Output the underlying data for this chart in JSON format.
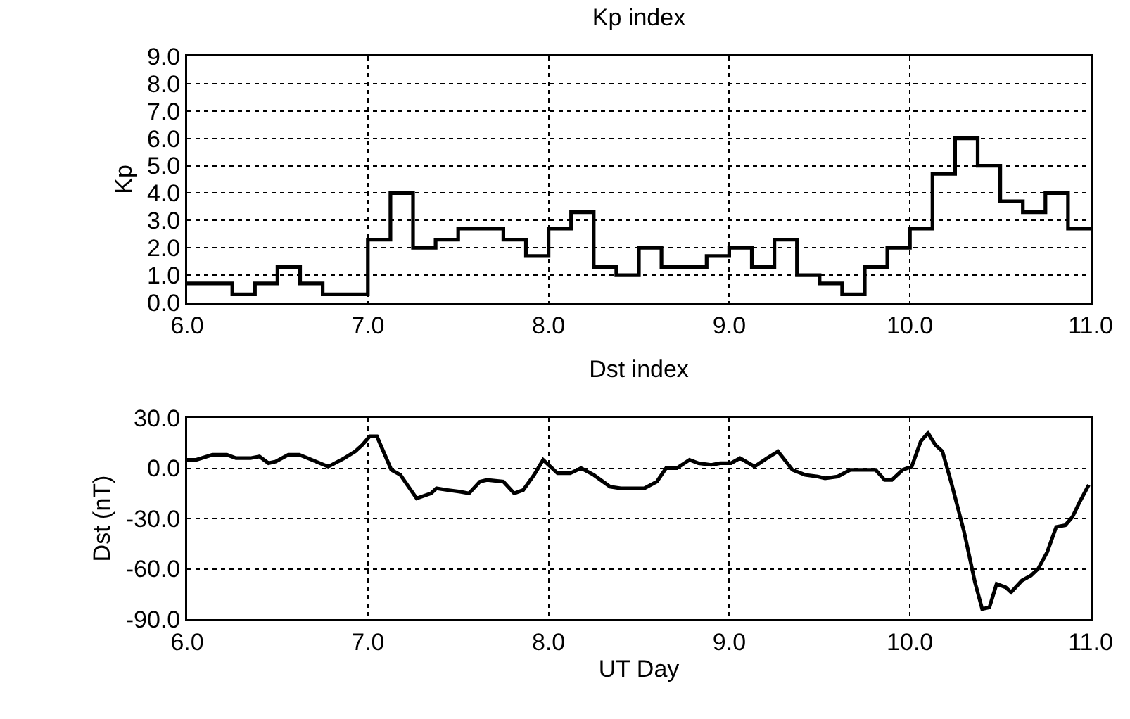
{
  "chart_data": [
    {
      "type": "step",
      "title": "Kp index",
      "ylabel": "Kp",
      "xlim": [
        6.0,
        11.0
      ],
      "ylim": [
        0,
        9
      ],
      "xticks": [
        {
          "value": 6,
          "label": "6.0"
        },
        {
          "value": 7,
          "label": "7.0"
        },
        {
          "value": 8,
          "label": "8.0"
        },
        {
          "value": 9,
          "label": "9.0"
        },
        {
          "value": 10,
          "label": "10.0"
        },
        {
          "value": 11,
          "label": "11.0"
        }
      ],
      "yticks": [
        {
          "value": 0,
          "label": "0.0"
        },
        {
          "value": 1,
          "label": "1.0"
        },
        {
          "value": 2,
          "label": "2.0"
        },
        {
          "value": 3,
          "label": "3.0"
        },
        {
          "value": 4,
          "label": "4.0"
        },
        {
          "value": 5,
          "label": "5.0"
        },
        {
          "value": 6,
          "label": "6.0"
        },
        {
          "value": 7,
          "label": "7.0"
        },
        {
          "value": 8,
          "label": "8.0"
        },
        {
          "value": 9,
          "label": "9.0"
        }
      ],
      "grid": true,
      "x": [
        6.0,
        6.125,
        6.25,
        6.375,
        6.5,
        6.625,
        6.75,
        6.875,
        7.0,
        7.125,
        7.25,
        7.375,
        7.5,
        7.625,
        7.75,
        7.875,
        8.0,
        8.125,
        8.25,
        8.375,
        8.5,
        8.625,
        8.75,
        8.875,
        9.0,
        9.125,
        9.25,
        9.375,
        9.5,
        9.625,
        9.75,
        9.875,
        10.0,
        10.125,
        10.25,
        10.375,
        10.5,
        10.625,
        10.75,
        10.875,
        11.0
      ],
      "series": [
        {
          "color": "#000000",
          "values": [
            0.7,
            0.7,
            0.3,
            0.7,
            1.3,
            0.7,
            0.3,
            0.3,
            2.3,
            4.0,
            2.0,
            2.3,
            2.7,
            2.7,
            2.3,
            1.7,
            2.7,
            3.3,
            1.3,
            1.0,
            2.0,
            1.3,
            1.3,
            1.7,
            2.0,
            1.3,
            2.3,
            1.0,
            0.7,
            0.3,
            1.3,
            2.0,
            2.7,
            4.7,
            6.0,
            5.0,
            3.7,
            3.3,
            4.0,
            2.7,
            2.7
          ]
        }
      ]
    },
    {
      "type": "line",
      "title": "Dst index",
      "xlabel": "UT Day",
      "ylabel": "Dst (nT)",
      "xlim": [
        6.0,
        11.0
      ],
      "ylim": [
        -90,
        30
      ],
      "xticks": [
        {
          "value": 6,
          "label": "6.0"
        },
        {
          "value": 7,
          "label": "7.0"
        },
        {
          "value": 8,
          "label": "8.0"
        },
        {
          "value": 9,
          "label": "9.0"
        },
        {
          "value": 10,
          "label": "10.0"
        },
        {
          "value": 11,
          "label": "11.0"
        }
      ],
      "yticks": [
        {
          "value": -90,
          "label": "-90.0"
        },
        {
          "value": -60,
          "label": "-60.0"
        },
        {
          "value": -30,
          "label": "-30.0"
        },
        {
          "value": 0,
          "label": "0.0"
        },
        {
          "value": 30,
          "label": "30.0"
        }
      ],
      "grid": true,
      "x": [
        6.0,
        6.05,
        6.14,
        6.22,
        6.27,
        6.35,
        6.4,
        6.45,
        6.49,
        6.56,
        6.62,
        6.69,
        6.78,
        6.8,
        6.87,
        6.93,
        6.97,
        7.01,
        7.05,
        7.13,
        7.18,
        7.27,
        7.35,
        7.38,
        7.44,
        7.51,
        7.56,
        7.62,
        7.66,
        7.75,
        7.81,
        7.86,
        7.92,
        7.97,
        8.05,
        8.12,
        8.18,
        8.25,
        8.34,
        8.4,
        8.53,
        8.6,
        8.65,
        8.71,
        8.78,
        8.83,
        8.9,
        8.95,
        9.01,
        9.06,
        9.14,
        9.21,
        9.27,
        9.35,
        9.42,
        9.49,
        9.53,
        9.6,
        9.67,
        9.72,
        9.81,
        9.86,
        9.9,
        9.96,
        10.01,
        10.06,
        10.1,
        10.14,
        10.18,
        10.23,
        10.3,
        10.36,
        10.4,
        10.44,
        10.48,
        10.53,
        10.56,
        10.62,
        10.67,
        10.71,
        10.76,
        10.81,
        10.86,
        10.9,
        10.94,
        10.99
      ],
      "series": [
        {
          "color": "#000000",
          "values": [
            5,
            5,
            8,
            8,
            6,
            6,
            7,
            3,
            4,
            8,
            8,
            5,
            1,
            2,
            6,
            10,
            14,
            19,
            19,
            -1,
            -4,
            -18,
            -15,
            -12,
            -13,
            -14,
            -15,
            -8,
            -7,
            -8,
            -15,
            -13,
            -4,
            5,
            -3,
            -3,
            0,
            -4,
            -11,
            -12,
            -12,
            -8,
            0,
            0,
            5,
            3,
            2,
            3,
            3,
            6,
            1,
            6,
            10,
            -1,
            -4,
            -5,
            -6,
            -5,
            -1,
            -1,
            -1,
            -7,
            -7,
            -1,
            1,
            16,
            21,
            14,
            10,
            -9,
            -38,
            -68,
            -84,
            -83,
            -69,
            -71,
            -74,
            -67,
            -64,
            -60,
            -50,
            -35,
            -34,
            -29,
            -20,
            -10
          ]
        }
      ]
    }
  ]
}
